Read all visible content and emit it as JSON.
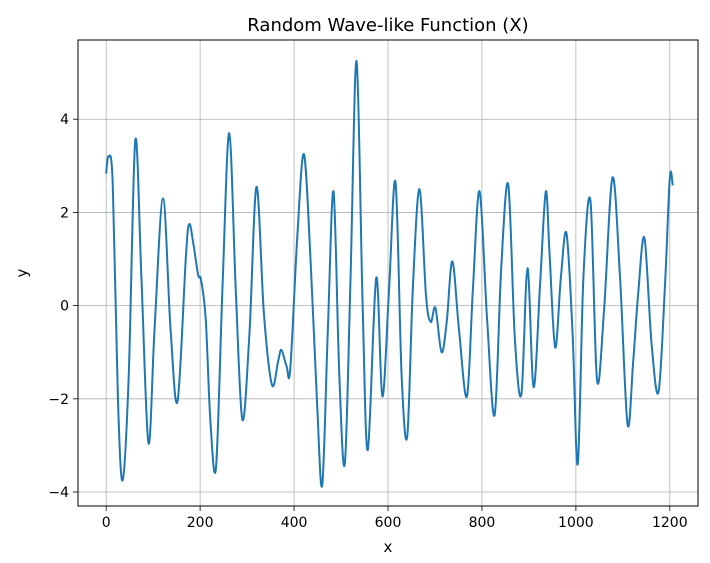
{
  "chart_data": {
    "type": "line",
    "title": "Random Wave-like Function (X)",
    "xlabel": "x",
    "ylabel": "y",
    "xlim": [
      -60,
      1260
    ],
    "ylim": [
      -4.3,
      5.7
    ],
    "xticks": [
      0,
      200,
      400,
      600,
      800,
      1000,
      1200
    ],
    "xtick_labels": [
      "0",
      "200",
      "400",
      "600",
      "800",
      "1000",
      "1200"
    ],
    "yticks": [
      -4,
      -2,
      0,
      2,
      4
    ],
    "ytick_labels": [
      "−4",
      "−2",
      "0",
      "2",
      "4"
    ],
    "grid": true,
    "line_color": "#1f77b4",
    "series": [
      {
        "x": [
          0,
          5,
          14,
          25,
          35,
          48,
          62,
          75,
          90,
          103,
          121,
          137,
          152,
          170,
          177,
          186,
          196,
          202,
          212,
          222,
          234,
          248,
          262,
          276,
          290,
          305,
          320,
          336,
          353,
          366,
          373,
          384,
          392,
          407,
          421,
          435,
          449,
          460,
          472,
          484,
          496,
          508,
          520,
          533,
          546,
          557,
          575,
          588,
          602,
          616,
          629,
          641,
          653,
          667,
          681,
          691,
          701,
          714,
          725,
          737,
          751,
          768,
          781,
          795,
          811,
          827,
          841,
          856,
          870,
          884,
          897,
          910,
          924,
          936,
          944,
          956,
          968,
          980,
          993,
          1004,
          1016,
          1031,
          1045,
          1060,
          1078,
          1094,
          1110,
          1122,
          1133,
          1146,
          1161,
          1176,
          1190,
          1200,
          1206
        ],
        "y": [
          2.85,
          3.2,
          2.6,
          -2.0,
          -3.75,
          -1.5,
          3.55,
          0.6,
          -2.95,
          -0.5,
          2.3,
          -0.5,
          -2.05,
          1.1,
          1.75,
          1.3,
          0.65,
          0.55,
          -0.3,
          -2.5,
          -3.45,
          0.5,
          3.7,
          0.3,
          -2.45,
          -0.6,
          2.55,
          -0.2,
          -1.7,
          -1.2,
          -0.95,
          -1.3,
          -1.35,
          1.5,
          3.25,
          1.0,
          -2.1,
          -3.85,
          -0.5,
          2.45,
          -1.4,
          -3.4,
          0.5,
          5.25,
          0.0,
          -3.1,
          0.6,
          -1.95,
          0.3,
          2.65,
          -1.5,
          -2.8,
          0.4,
          2.5,
          0.2,
          -0.35,
          -0.05,
          -1.0,
          -0.35,
          0.95,
          -0.5,
          -1.95,
          0.4,
          2.45,
          -0.3,
          -2.35,
          0.8,
          2.6,
          -0.7,
          -1.9,
          0.8,
          -1.75,
          0.5,
          2.45,
          1.1,
          -0.9,
          0.6,
          1.55,
          -0.6,
          -3.4,
          0.6,
          2.25,
          -1.6,
          -0.1,
          2.75,
          0.6,
          -2.55,
          -1.2,
          0.3,
          1.45,
          -0.8,
          -1.85,
          0.5,
          2.75,
          2.6
        ]
      }
    ]
  }
}
